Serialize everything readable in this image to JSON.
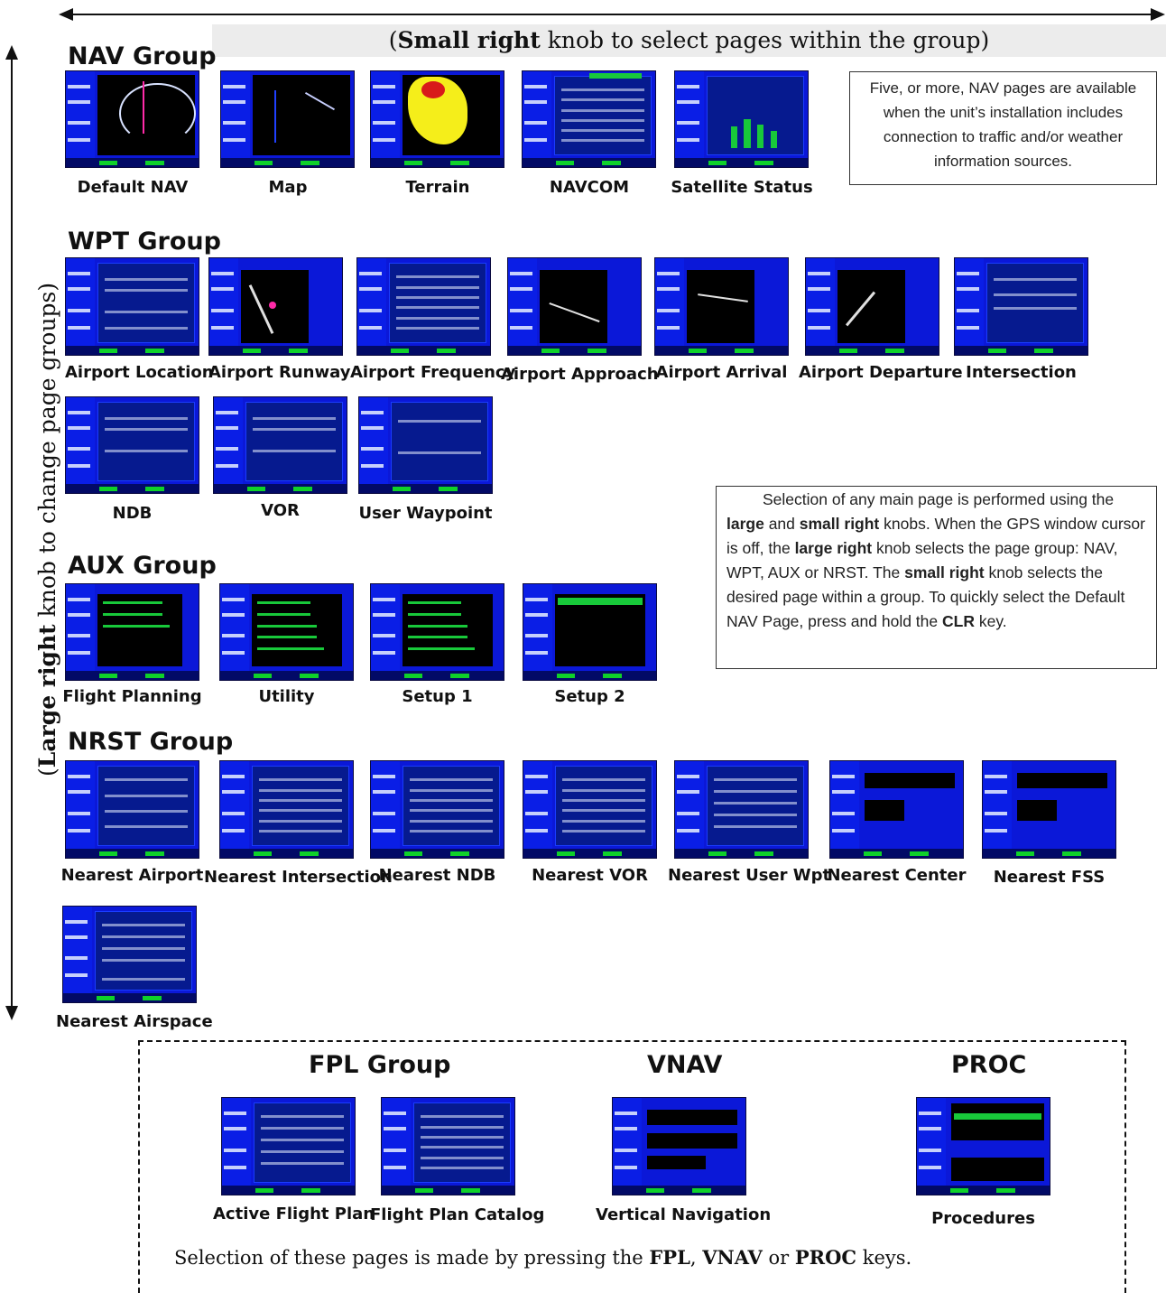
{
  "top_instruction": {
    "bold": "Small right",
    "rest": " knob to select pages within the group)",
    "open": "("
  },
  "side_instruction": {
    "open": "(",
    "bold": "Large right",
    "rest": " knob to change page groups)"
  },
  "groups": {
    "nav": {
      "title": "NAV Group",
      "pages": [
        "Default NAV",
        "Map",
        "Terrain",
        "NAVCOM",
        "Satellite Status"
      ]
    },
    "wpt": {
      "title": "WPT Group",
      "pages": [
        "Airport Location",
        "Airport Runway",
        "Airport Frequency",
        "Airport Approach",
        "Airport Arrival",
        "Airport Departure",
        "Intersection",
        "NDB",
        "VOR",
        "User Waypoint"
      ]
    },
    "aux": {
      "title": "AUX Group",
      "pages": [
        "Flight Planning",
        "Utility",
        "Setup 1",
        "Setup 2"
      ]
    },
    "nrst": {
      "title": "NRST Group",
      "pages": [
        "Nearest Airport",
        "Nearest Intersection",
        "Nearest NDB",
        "Nearest VOR",
        "Nearest User Wpt",
        "Nearest Center",
        "Nearest FSS",
        "Nearest Airspace"
      ]
    },
    "fpl": {
      "title": "FPL Group",
      "pages": [
        "Active Flight Plan",
        "Flight Plan Catalog"
      ]
    },
    "vnav": {
      "title": "VNAV",
      "pages": [
        "Vertical Navigation"
      ]
    },
    "proc": {
      "title": "PROC",
      "pages": [
        "Procedures"
      ]
    }
  },
  "nav_note": "Five, or more, NAV pages are available when the unit’s  installation includes connection to traffic and/or weather information sources.",
  "selection_note": {
    "p1": "Selection of any main page is performed using the ",
    "b1": "large",
    "p2": " and ",
    "b2": "small right",
    "p3": " knobs. When the GPS window cursor is off, the ",
    "b3": "large right",
    "p4": " knob selects the page group: NAV, WPT, AUX or NRST. The ",
    "b4": "small right",
    "p5": " knob selects the desired page within a group. To quickly select the Default NAV Page, press and hold the ",
    "b5": "CLR",
    "p6": " key."
  },
  "bottom_note": {
    "p1": "Selection of these pages is made by pressing the ",
    "b1": "FPL",
    "p2": ", ",
    "b2": "VNAV",
    "p3": " or ",
    "b3": "PROC",
    "p4": " keys."
  }
}
